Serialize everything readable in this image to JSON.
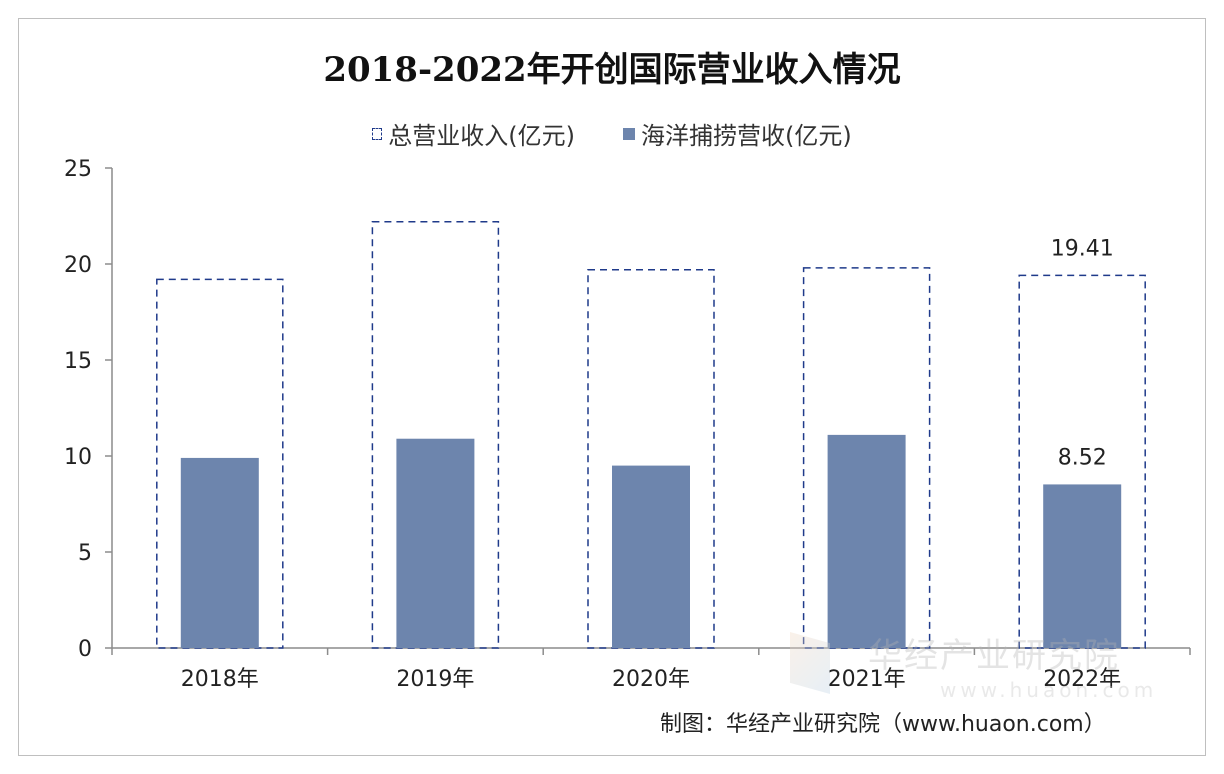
{
  "chart_data": {
    "type": "bar",
    "title": "2018-2022年开创国际营业收入情况",
    "categories": [
      "2018年",
      "2019年",
      "2020年",
      "2021年",
      "2022年"
    ],
    "series": [
      {
        "name": "总营业收入(亿元)",
        "style": "dashed-outline",
        "values": [
          19.2,
          22.2,
          19.7,
          19.8,
          19.41
        ]
      },
      {
        "name": "海洋捕捞营收(亿元)",
        "style": "solid",
        "values": [
          9.9,
          10.9,
          9.5,
          11.1,
          8.52
        ]
      }
    ],
    "data_labels": [
      {
        "series": 0,
        "index": 4,
        "text": "19.41"
      },
      {
        "series": 1,
        "index": 4,
        "text": "8.52"
      }
    ],
    "ylim": [
      0,
      25
    ],
    "yticks": [
      0,
      5,
      10,
      15,
      20,
      25
    ],
    "xlabel": "",
    "ylabel": "",
    "legend_position": "top"
  },
  "colors": {
    "bar_fill": "#6d85ad",
    "outline": "#1f3a8a",
    "axis": "#8c8c8c",
    "text": "#222222"
  },
  "source": "制图：华经产业研究院（www.huaon.com）",
  "watermark": {
    "name": "华经产业研究院",
    "url": "www.huaon.com"
  }
}
